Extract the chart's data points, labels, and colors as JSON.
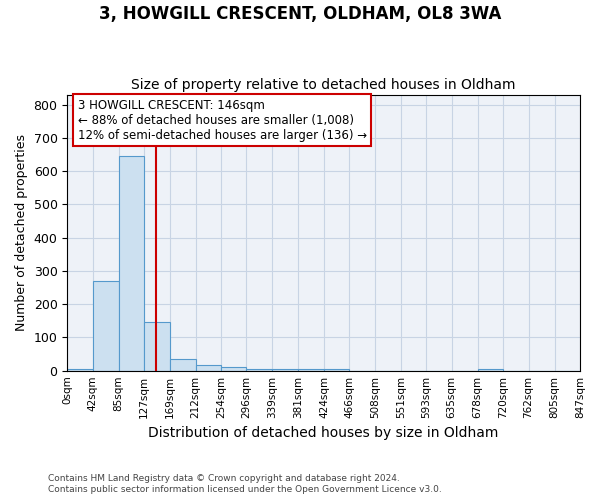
{
  "title": "3, HOWGILL CRESCENT, OLDHAM, OL8 3WA",
  "subtitle": "Size of property relative to detached houses in Oldham",
  "xlabel": "Distribution of detached houses by size in Oldham",
  "ylabel": "Number of detached properties",
  "footnote1": "Contains HM Land Registry data © Crown copyright and database right 2024.",
  "footnote2": "Contains public sector information licensed under the Open Government Licence v3.0.",
  "bar_edges": [
    0,
    42,
    85,
    127,
    169,
    212,
    254,
    296,
    339,
    381,
    424,
    466,
    508,
    551,
    593,
    635,
    678,
    720,
    762,
    805,
    847
  ],
  "bar_heights": [
    5,
    270,
    645,
    145,
    35,
    18,
    10,
    5,
    5,
    5,
    5,
    0,
    0,
    0,
    0,
    0,
    5,
    0,
    0,
    0
  ],
  "bar_color": "#cce0f0",
  "bar_edge_color": "#5599cc",
  "red_line_x": 146,
  "annotation_line1": "3 HOWGILL CRESCENT: 146sqm",
  "annotation_line2": "← 88% of detached houses are smaller (1,008)",
  "annotation_line3": "12% of semi-detached houses are larger (136) →",
  "annotation_box_color": "#ffffff",
  "annotation_box_edge_color": "#cc0000",
  "ylim": [
    0,
    830
  ],
  "yticks": [
    0,
    100,
    200,
    300,
    400,
    500,
    600,
    700,
    800
  ],
  "background_color": "#eef2f8",
  "plot_background": "#ffffff",
  "grid_color": "#c8d4e4"
}
